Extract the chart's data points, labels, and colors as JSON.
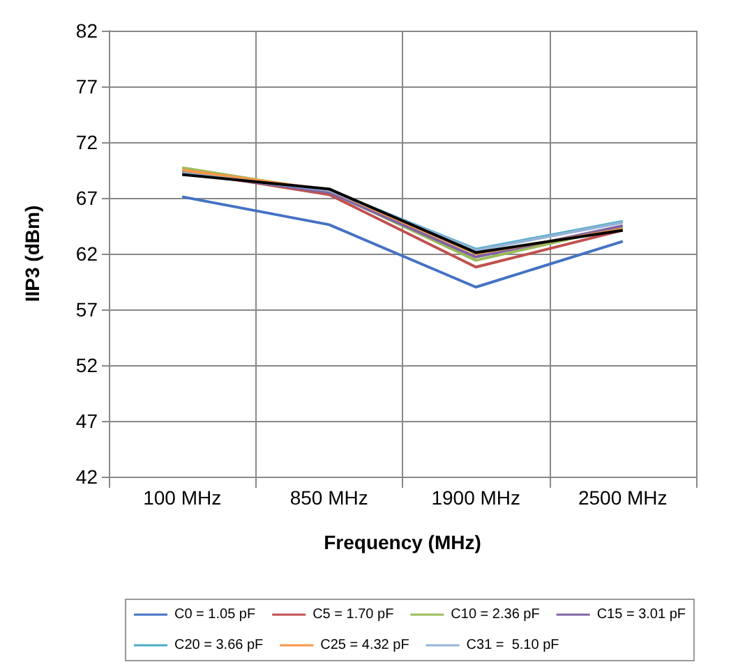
{
  "chart_data": {
    "type": "line",
    "xlabel": "Frequency (MHz)",
    "ylabel": "IIP3 (dBm)",
    "categories": [
      "100 MHz",
      "850 MHz",
      "1900 MHz",
      "2500 MHz"
    ],
    "series": [
      {
        "name": "C0 = 1.05 pF",
        "color": "#4472c4",
        "values": [
          67.1,
          64.6,
          59.0,
          63.1
        ]
      },
      {
        "name": "C5 = 1.70 pF",
        "color": "#c0504d",
        "values": [
          69.4,
          67.3,
          60.8,
          64.1
        ]
      },
      {
        "name": "C10 = 2.36 pF",
        "color": "#9bbb59",
        "values": [
          69.7,
          67.6,
          61.4,
          64.4
        ]
      },
      {
        "name": "C15 = 3.01 pF",
        "color": "#8064a2",
        "values": [
          69.3,
          67.5,
          61.7,
          64.5
        ]
      },
      {
        "name": "C20 = 3.66 pF",
        "color": "#4bacc6",
        "values": [
          69.2,
          67.7,
          62.4,
          64.9
        ]
      },
      {
        "name": "C25 = 4.32 pF",
        "color": "#f79646",
        "values": [
          69.5,
          67.7,
          62.0,
          64.2
        ]
      },
      {
        "name": "C31 =  5.10 pF",
        "color": "#95b3d7",
        "values": [
          69.2,
          67.7,
          62.3,
          64.8
        ]
      },
      {
        "color": "#000000",
        "values": [
          69.1,
          67.8,
          62.1,
          64.1
        ]
      }
    ],
    "ylim": [
      42,
      82
    ],
    "yticks": [
      42,
      47,
      52,
      57,
      62,
      67,
      72,
      77,
      82
    ],
    "grid": true,
    "legend": "bottom",
    "marker": "none",
    "line_style": "solid"
  }
}
